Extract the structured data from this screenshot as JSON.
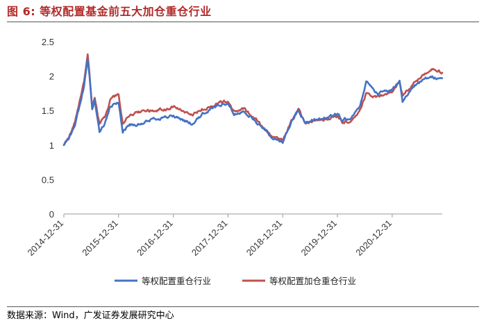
{
  "header": {
    "title": "图 6:  等权配置基金前五大加仓重仓行业"
  },
  "footer": {
    "source": "数据来源：Wind，广发证券发展研究中心"
  },
  "colors": {
    "title": "#b22a2a",
    "series_1": "#4472c4",
    "series_2": "#c0504d"
  },
  "chart_data": {
    "type": "line",
    "title": "",
    "xlabel": "",
    "ylabel": "",
    "ylim": [
      0,
      2.5
    ],
    "yticks": [
      0,
      0.5,
      1,
      1.5,
      2,
      2.5
    ],
    "ytick_labels": [
      "0",
      "0.5",
      "1",
      "1.5",
      "2",
      "2.5"
    ],
    "xlim": [
      "2014-12-31",
      "2021-11-30"
    ],
    "xticks": [
      "2014-12-31",
      "2015-12-31",
      "2016-12-31",
      "2017-12-31",
      "2018-12-31",
      "2019-12-31",
      "2020-12-31"
    ],
    "grid": false,
    "legend": "bottom",
    "series": [
      {
        "name": "等权配置重仓行业",
        "color": "#4472c4",
        "points": [
          [
            "2014-12-31",
            1.0
          ],
          [
            "2015-02-05",
            1.1
          ],
          [
            "2015-03-15",
            1.3
          ],
          [
            "2015-04-20",
            1.6
          ],
          [
            "2015-05-15",
            1.85
          ],
          [
            "2015-06-08",
            2.25
          ],
          [
            "2015-06-20",
            2.0
          ],
          [
            "2015-07-08",
            1.5
          ],
          [
            "2015-07-25",
            1.65
          ],
          [
            "2015-08-26",
            1.2
          ],
          [
            "2015-09-30",
            1.3
          ],
          [
            "2015-11-05",
            1.55
          ],
          [
            "2015-12-31",
            1.62
          ],
          [
            "2016-01-28",
            1.2
          ],
          [
            "2016-03-15",
            1.3
          ],
          [
            "2016-05-31",
            1.3
          ],
          [
            "2016-08-15",
            1.38
          ],
          [
            "2016-10-31",
            1.4
          ],
          [
            "2016-12-31",
            1.42
          ],
          [
            "2017-02-28",
            1.37
          ],
          [
            "2017-05-10",
            1.3
          ],
          [
            "2017-07-15",
            1.45
          ],
          [
            "2017-09-30",
            1.55
          ],
          [
            "2017-12-31",
            1.62
          ],
          [
            "2018-02-09",
            1.45
          ],
          [
            "2018-04-15",
            1.5
          ],
          [
            "2018-06-30",
            1.35
          ],
          [
            "2018-09-15",
            1.2
          ],
          [
            "2018-10-20",
            1.1
          ],
          [
            "2018-12-31",
            1.05
          ],
          [
            "2019-02-28",
            1.35
          ],
          [
            "2019-04-15",
            1.5
          ],
          [
            "2019-05-31",
            1.33
          ],
          [
            "2019-08-15",
            1.38
          ],
          [
            "2019-10-31",
            1.4
          ],
          [
            "2019-12-31",
            1.45
          ],
          [
            "2020-02-03",
            1.35
          ],
          [
            "2020-03-23",
            1.4
          ],
          [
            "2020-05-31",
            1.55
          ],
          [
            "2020-07-10",
            1.92
          ],
          [
            "2020-09-30",
            1.75
          ],
          [
            "2020-12-31",
            1.8
          ],
          [
            "2021-02-18",
            1.95
          ],
          [
            "2021-03-10",
            1.65
          ],
          [
            "2021-05-31",
            1.85
          ],
          [
            "2021-07-31",
            1.95
          ],
          [
            "2021-09-30",
            1.98
          ],
          [
            "2021-11-30",
            1.97
          ]
        ]
      },
      {
        "name": "等权配置加仓重仓行业",
        "color": "#c0504d",
        "points": [
          [
            "2014-12-31",
            1.0
          ],
          [
            "2015-02-05",
            1.12
          ],
          [
            "2015-03-15",
            1.35
          ],
          [
            "2015-04-20",
            1.68
          ],
          [
            "2015-05-15",
            1.92
          ],
          [
            "2015-06-08",
            2.3
          ],
          [
            "2015-06-20",
            2.05
          ],
          [
            "2015-07-08",
            1.55
          ],
          [
            "2015-07-25",
            1.7
          ],
          [
            "2015-08-26",
            1.3
          ],
          [
            "2015-09-30",
            1.4
          ],
          [
            "2015-11-05",
            1.65
          ],
          [
            "2015-12-31",
            1.75
          ],
          [
            "2016-01-28",
            1.3
          ],
          [
            "2016-03-15",
            1.45
          ],
          [
            "2016-05-31",
            1.48
          ],
          [
            "2016-08-15",
            1.5
          ],
          [
            "2016-10-31",
            1.52
          ],
          [
            "2016-12-31",
            1.55
          ],
          [
            "2017-02-28",
            1.5
          ],
          [
            "2017-05-10",
            1.45
          ],
          [
            "2017-07-15",
            1.52
          ],
          [
            "2017-09-30",
            1.58
          ],
          [
            "2017-12-31",
            1.65
          ],
          [
            "2018-02-09",
            1.48
          ],
          [
            "2018-04-15",
            1.52
          ],
          [
            "2018-06-30",
            1.38
          ],
          [
            "2018-09-15",
            1.22
          ],
          [
            "2018-10-20",
            1.12
          ],
          [
            "2018-12-31",
            1.07
          ],
          [
            "2019-02-28",
            1.35
          ],
          [
            "2019-04-15",
            1.52
          ],
          [
            "2019-05-31",
            1.32
          ],
          [
            "2019-08-15",
            1.36
          ],
          [
            "2019-10-31",
            1.38
          ],
          [
            "2019-12-31",
            1.42
          ],
          [
            "2020-02-03",
            1.32
          ],
          [
            "2020-03-23",
            1.35
          ],
          [
            "2020-05-31",
            1.5
          ],
          [
            "2020-07-10",
            1.75
          ],
          [
            "2020-09-30",
            1.7
          ],
          [
            "2020-12-31",
            1.78
          ],
          [
            "2021-02-18",
            1.95
          ],
          [
            "2021-03-10",
            1.72
          ],
          [
            "2021-05-31",
            1.9
          ],
          [
            "2021-07-31",
            2.02
          ],
          [
            "2021-09-30",
            2.12
          ],
          [
            "2021-11-30",
            2.05
          ]
        ]
      }
    ]
  }
}
